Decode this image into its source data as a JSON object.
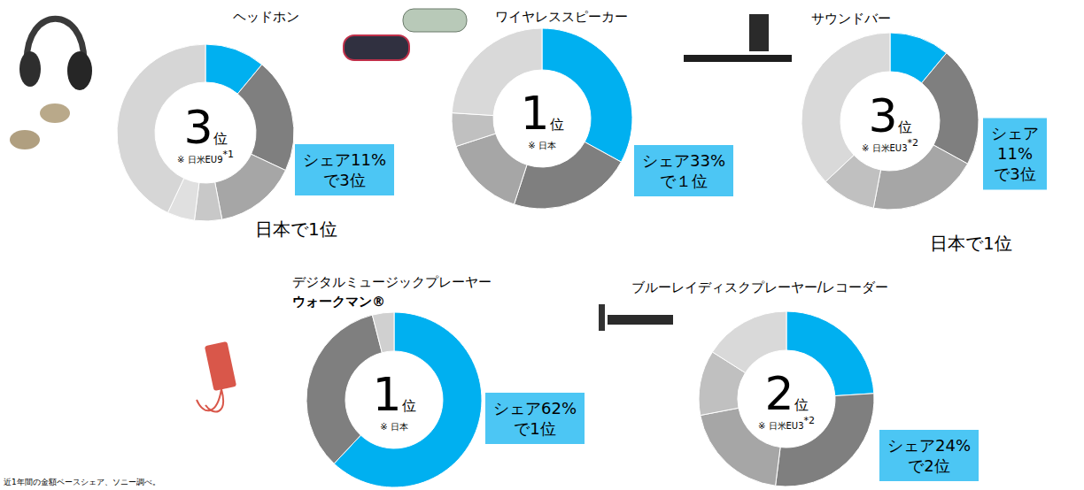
{
  "chart_data": [
    {
      "type": "donut",
      "title": "ヘッドホン",
      "values": [
        11,
        21,
        15,
        5,
        5,
        43
      ],
      "colors": [
        "#00b0f0",
        "#7f7f7f",
        "#a6a6a6",
        "#c8c8c8",
        "#e0e0e0",
        "#d6d6d6"
      ],
      "rank": "3",
      "rank_suffix": "位",
      "note": "※ 日米EU9",
      "note_mark": "*1",
      "callout": [
        "シェア11%",
        "で3位"
      ],
      "extra": "日本で1位"
    },
    {
      "type": "donut",
      "title": "ワイヤレススピーカー",
      "values": [
        33,
        22,
        15,
        6,
        24
      ],
      "colors": [
        "#00b0f0",
        "#7f7f7f",
        "#a6a6a6",
        "#c0c0c0",
        "#d9d9d9"
      ],
      "rank": "1",
      "rank_suffix": "位",
      "note": "※ 日本",
      "callout": [
        "シェア33%",
        "で１位"
      ]
    },
    {
      "type": "donut",
      "title": "サウンドバー",
      "values": [
        11,
        22,
        20,
        10,
        37
      ],
      "colors": [
        "#00b0f0",
        "#7f7f7f",
        "#a6a6a6",
        "#c0c0c0",
        "#d9d9d9"
      ],
      "rank": "3",
      "rank_suffix": "位",
      "note": "※ 日米EU3",
      "note_mark": "*2",
      "callout": [
        "シェア",
        "11%",
        "で3位"
      ],
      "extra": "日本で1位"
    },
    {
      "type": "donut",
      "title": "デジタルミュージックプレーヤー",
      "subtitle": "ウォークマン®",
      "values": [
        62,
        34,
        4
      ],
      "colors": [
        "#00b0f0",
        "#7f7f7f",
        "#d0d0d0"
      ],
      "rank": "1",
      "rank_suffix": "位",
      "note": "※ 日本",
      "callout": [
        "シェア62%",
        "で1位"
      ]
    },
    {
      "type": "donut",
      "title": "ブルーレイディスクプレーヤー/レコーダー",
      "values": [
        24,
        28,
        20,
        12,
        16
      ],
      "colors": [
        "#00b0f0",
        "#7f7f7f",
        "#a6a6a6",
        "#c0c0c0",
        "#d9d9d9"
      ],
      "rank": "2",
      "rank_suffix": "位",
      "note": "※ 日米EU3",
      "note_mark": "*2",
      "callout": [
        "シェア24%",
        "で2位"
      ]
    }
  ],
  "footnote": "近1年間の金額ベースシェア、ソニー調べ。"
}
